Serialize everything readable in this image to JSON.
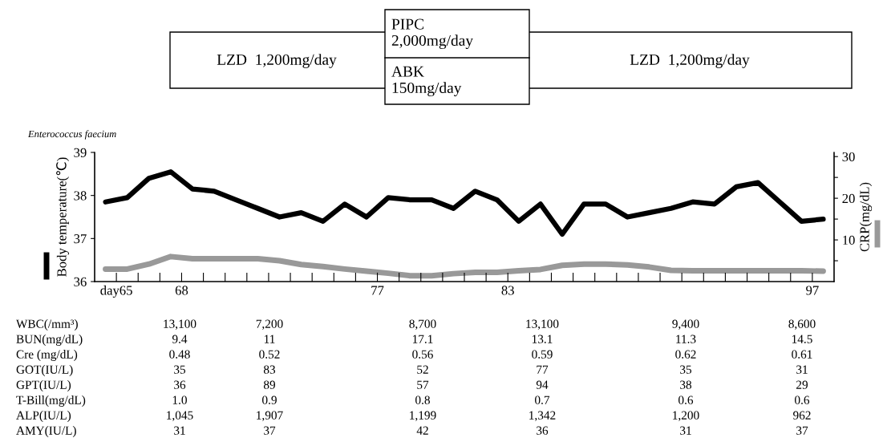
{
  "chart_data": [
    {
      "type": "line",
      "annotations": [
        "LZD  1,200mg/day",
        "PIPC\n2,000mg/day",
        "ABK\n150mg/day",
        "LZD  1,200mg/day",
        "Enterococcus faecium"
      ],
      "ylabel": "Body temperature(℃)",
      "y2label": "CRP(mg/dL)",
      "x": [
        64.5,
        65.5,
        66.5,
        67.5,
        68.5,
        69.5,
        70.5,
        71.5,
        72.5,
        73.5,
        74.5,
        75.5,
        76.5,
        77.5,
        78.5,
        79.5,
        80.5,
        81.5,
        82.5,
        83.5,
        84.5,
        85.5,
        86.5,
        87.5,
        88.5,
        89.5,
        90.5,
        91.5,
        92.5,
        93.5,
        94.5,
        95.5,
        96.5,
        97.5
      ],
      "series": [
        {
          "color": "#000000",
          "values": [
            37.85,
            37.95,
            38.4,
            38.55,
            38.15,
            38.1,
            37.9,
            37.7,
            37.5,
            37.6,
            37.4,
            37.8,
            37.5,
            37.95,
            37.9,
            37.9,
            37.7,
            38.1,
            37.9,
            37.4,
            37.8,
            37.1,
            37.8,
            37.8,
            37.5,
            37.6,
            37.7,
            37.85,
            37.8,
            38.2,
            38.3,
            37.85,
            37.4,
            37.45
          ]
        },
        {
          "color": "#999999",
          "axis": "y2",
          "values": [
            3.0,
            3.0,
            4.2,
            6.0,
            5.5,
            5.5,
            5.5,
            5.5,
            5.0,
            4.1,
            3.6,
            3.0,
            2.5,
            2.0,
            1.4,
            1.4,
            1.9,
            2.2,
            2.2,
            2.6,
            2.9,
            3.9,
            4.2,
            4.2,
            4.0,
            3.5,
            2.7,
            2.6,
            2.6,
            2.6,
            2.6,
            2.6,
            2.6,
            2.5
          ]
        }
      ],
      "xlim": [
        64,
        98
      ],
      "xticks": [
        {
          "value": 65,
          "label": "day65"
        },
        {
          "value": 66,
          "label": null
        },
        {
          "value": 67,
          "label": null
        },
        68,
        {
          "value": 69,
          "label": null
        },
        {
          "value": 70,
          "label": null
        },
        {
          "value": 71,
          "label": null
        },
        {
          "value": 72,
          "label": null
        },
        {
          "value": 73,
          "label": null
        },
        {
          "value": 74,
          "label": null
        },
        {
          "value": 75,
          "label": null
        },
        {
          "value": 76,
          "label": null
        },
        77,
        {
          "value": 78,
          "label": null
        },
        {
          "value": 79,
          "label": null
        },
        {
          "value": 80,
          "label": null
        },
        {
          "value": 81,
          "label": null
        },
        {
          "value": 82,
          "label": null
        },
        83,
        {
          "value": 84,
          "label": null
        },
        {
          "value": 85,
          "label": null
        },
        {
          "value": 86,
          "label": null
        },
        {
          "value": 87,
          "label": null
        },
        {
          "value": 88,
          "label": null
        },
        {
          "value": 89,
          "label": null
        },
        {
          "value": 90,
          "label": null
        },
        {
          "value": 91,
          "label": null
        },
        {
          "value": 92,
          "label": null
        },
        {
          "value": 93,
          "label": null
        },
        {
          "value": 94,
          "label": null
        },
        {
          "value": 95,
          "label": null
        },
        {
          "value": 96,
          "label": null
        },
        97
      ],
      "ylim": [
        36,
        39
      ],
      "yticks": [
        36,
        37,
        38,
        39
      ],
      "y2lim": [
        0,
        31
      ],
      "y2ticks": [
        {
          "value": 5,
          "label": null
        },
        10,
        {
          "value": 15,
          "label": null
        },
        20,
        {
          "value": 25,
          "label": null
        },
        30
      ]
    },
    {
      "type": "other",
      "y_categories": [
        "WBC(/mm³)",
        "BUN(mg/dL)",
        "Cre (mg/dL)",
        "GOT(IU/L)",
        "GPT(IU/L)",
        "T-Bill(mg/dL)",
        "ALP(IU/L)",
        "AMY(IU/L)"
      ],
      "cell_labels": [
        [
          "13,100",
          "7,200",
          "8,700",
          "13,100",
          "9,400",
          "8,600"
        ],
        [
          "9.4",
          "11",
          "17.1",
          "13.1",
          "11.3",
          "14.5"
        ],
        [
          "0.48",
          "0.52",
          "0.56",
          "0.59",
          "0.62",
          "0.61"
        ],
        [
          "35",
          "83",
          "52",
          "77",
          "35",
          "31"
        ],
        [
          "36",
          "89",
          "57",
          "94",
          "38",
          "29"
        ],
        [
          "1.0",
          "0.9",
          "0.8",
          "0.7",
          "0.6",
          "0.6"
        ],
        [
          "1,045",
          "1,907",
          "1,199",
          "1,342",
          "1,200",
          "962"
        ],
        [
          "31",
          "37",
          "42",
          "36",
          "31",
          "37"
        ]
      ]
    }
  ]
}
